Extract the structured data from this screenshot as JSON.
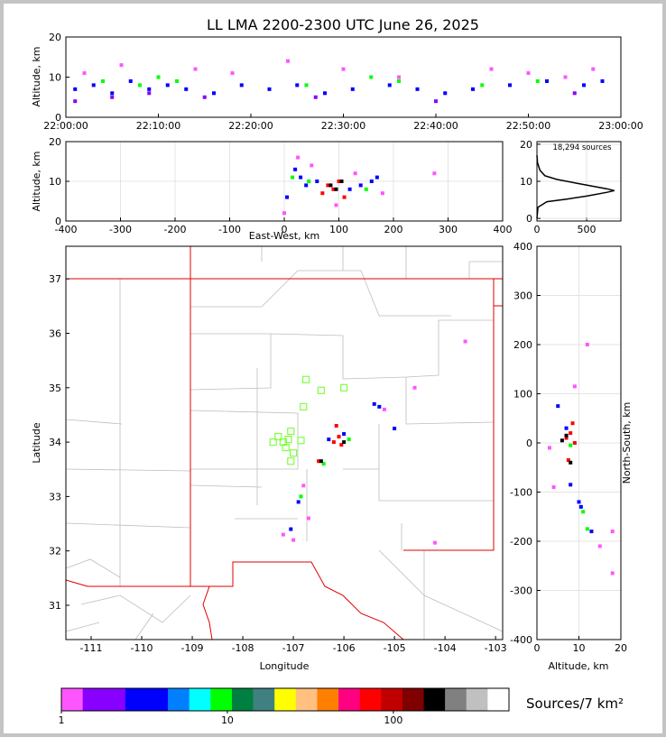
{
  "chart_data": [
    {
      "type": "scatter",
      "title": "LL LMA 2200-2300 UTC June 26, 2025",
      "ylabel": "Altitude, km",
      "xlim": [
        0,
        60
      ],
      "xticks": [
        {
          "value": 0,
          "label": "22:00:00"
        },
        {
          "value": 10,
          "label": "22:10:00"
        },
        {
          "value": 20,
          "label": "22:20:00"
        },
        {
          "value": 30,
          "label": "22:30:00"
        },
        {
          "value": 40,
          "label": "22:40:00"
        },
        {
          "value": 50,
          "label": "22:50:00"
        },
        {
          "value": 60,
          "label": "23:00:00"
        }
      ],
      "ylim": [
        0,
        20
      ],
      "yticks": [
        0,
        10,
        20
      ],
      "grid": false,
      "series": [
        {
          "color": "#0000ff",
          "x": [
            1,
            3,
            5,
            7,
            9,
            11,
            13,
            16,
            19,
            22,
            25,
            28,
            31,
            35,
            38,
            41,
            44,
            48,
            52,
            56,
            58
          ],
          "y": [
            7,
            8,
            6,
            9,
            7,
            8,
            7,
            6,
            8,
            7,
            8,
            6,
            7,
            8,
            7,
            6,
            7,
            8,
            9,
            8,
            9
          ]
        },
        {
          "color": "#ff55ff",
          "x": [
            2,
            6,
            10,
            14,
            18,
            24,
            30,
            36,
            46,
            50,
            54,
            57
          ],
          "y": [
            11,
            13,
            10,
            12,
            11,
            14,
            12,
            10,
            12,
            11,
            10,
            12
          ]
        },
        {
          "color": "#00ff00",
          "x": [
            4,
            8,
            10,
            12,
            26,
            33,
            36,
            45,
            51
          ],
          "y": [
            9,
            8,
            10,
            9,
            8,
            10,
            9,
            8,
            9
          ]
        },
        {
          "color": "#8800ff",
          "x": [
            1,
            5,
            9,
            15,
            27,
            40,
            55
          ],
          "y": [
            4,
            5,
            6,
            5,
            5,
            4,
            6
          ]
        }
      ]
    },
    {
      "type": "scatter",
      "ylabel": "Altitude, km",
      "xlabel": "East-West, km",
      "xlim": [
        -400,
        400
      ],
      "xticks": [
        -400,
        -300,
        -200,
        -100,
        0,
        100,
        200,
        300,
        400
      ],
      "ylim": [
        0,
        20
      ],
      "yticks": [
        0,
        10,
        20
      ],
      "grid": true,
      "series": [
        {
          "color": "#0000ff",
          "x": [
            5,
            20,
            30,
            40,
            60,
            120,
            140,
            160,
            170
          ],
          "y": [
            6,
            13,
            11,
            9,
            10,
            8,
            9,
            10,
            11
          ]
        },
        {
          "color": "#ff55ff",
          "x": [
            0,
            25,
            50,
            95,
            130,
            180,
            275
          ],
          "y": [
            2,
            16,
            14,
            4,
            12,
            7,
            12
          ]
        },
        {
          "color": "#ff0000",
          "x": [
            70,
            80,
            90,
            100,
            110
          ],
          "y": [
            7,
            9,
            8,
            10,
            6
          ]
        },
        {
          "color": "#000000",
          "x": [
            85,
            95,
            105
          ],
          "y": [
            9,
            8,
            10
          ]
        },
        {
          "color": "#00ff00",
          "x": [
            15,
            45,
            150
          ],
          "y": [
            11,
            10,
            8
          ]
        }
      ]
    },
    {
      "type": "line",
      "annotation": "18,294 sources",
      "xlim": [
        0,
        845
      ],
      "xticks": [
        0,
        500
      ],
      "ylim": [
        -0.7,
        20.7
      ],
      "yticks": [
        0,
        10,
        20
      ],
      "grid": true,
      "series": [
        {
          "color": "#000000",
          "x": [
            0,
            10,
            100,
            300,
            500,
            700,
            780,
            700,
            400,
            200,
            80,
            30,
            5,
            0
          ],
          "y": [
            0,
            3,
            4.5,
            5.2,
            6,
            7,
            7.5,
            8,
            9.5,
            10.5,
            11.5,
            13,
            15,
            17
          ]
        }
      ]
    },
    {
      "type": "scatter",
      "xlabel": "Longitude",
      "ylabel": "Latitude",
      "xlim": [
        -111.5,
        -102.86
      ],
      "xticks": [
        -111,
        -110,
        -109,
        -108,
        -107,
        -106,
        -105,
        -104,
        -103
      ],
      "ylim": [
        30.37,
        37.6
      ],
      "yticks": [
        31,
        32,
        33,
        34,
        35,
        36,
        37
      ],
      "grid": false,
      "series": [
        {
          "color": "#ff0000",
          "x": [
            -106.1,
            -106.2,
            -106.05,
            -106.15,
            -106.5
          ],
          "y": [
            34.1,
            34.0,
            33.95,
            34.3,
            33.65
          ]
        },
        {
          "color": "#0000ff",
          "x": [
            -105.3,
            -105.4,
            -106.9,
            -107.05,
            -106.0,
            -105.0,
            -106.3
          ],
          "y": [
            34.65,
            34.7,
            32.9,
            32.4,
            34.15,
            34.25,
            34.05
          ]
        },
        {
          "color": "#ff55ff",
          "x": [
            -106.8,
            -107.0,
            -104.6,
            -105.2,
            -107.2,
            -106.7,
            -103.6,
            -104.2
          ],
          "y": [
            33.2,
            32.2,
            35.0,
            34.6,
            32.3,
            32.6,
            35.85,
            32.15
          ]
        },
        {
          "color": "#00ff00",
          "x": [
            -106.85,
            -106.4,
            -105.9
          ],
          "y": [
            33.0,
            33.6,
            34.05
          ]
        },
        {
          "color": "#000000",
          "x": [
            -106.0,
            -106.45
          ],
          "y": [
            34.0,
            33.65
          ]
        },
        {
          "color": "#80ff40",
          "hollow": true,
          "x": [
            -106.75,
            -106.45,
            -106.0,
            -106.8,
            -107.05,
            -107.3,
            -107.1,
            -107.4,
            -107.2,
            -106.85,
            -107.0,
            -107.05,
            -107.15
          ],
          "y": [
            35.15,
            34.95,
            35.0,
            34.65,
            34.2,
            34.1,
            34.05,
            34.0,
            34.0,
            34.03,
            33.8,
            33.65,
            33.9
          ]
        }
      ]
    },
    {
      "type": "scatter",
      "xlabel": "Altitude, km",
      "ylabel": "North-South, km",
      "xlim": [
        0,
        20
      ],
      "xticks": [
        0,
        10,
        20
      ],
      "ylim": [
        -400,
        400
      ],
      "yticks": [
        -400,
        -300,
        -200,
        -100,
        0,
        100,
        200,
        300,
        400
      ],
      "grid": true,
      "series": [
        {
          "color": "#0000ff",
          "x": [
            5,
            7,
            10,
            10.5,
            13,
            8
          ],
          "y": [
            75,
            30,
            -120,
            -130,
            -180,
            -85
          ]
        },
        {
          "color": "#ff55ff",
          "x": [
            3,
            4,
            9,
            12,
            15,
            18,
            18
          ],
          "y": [
            -10,
            -90,
            115,
            200,
            -210,
            -265,
            -180
          ]
        },
        {
          "color": "#ff0000",
          "x": [
            7,
            8,
            9,
            7.5,
            8.5
          ],
          "y": [
            10,
            20,
            0,
            -35,
            40
          ]
        },
        {
          "color": "#000000",
          "x": [
            6,
            7,
            8
          ],
          "y": [
            5,
            15,
            -40
          ]
        },
        {
          "color": "#00ff00",
          "x": [
            8,
            11,
            12
          ],
          "y": [
            -5,
            -140,
            -175
          ]
        }
      ]
    },
    {
      "type": "colorbar",
      "label": "Sources/7 km²",
      "log": true,
      "xlim": [
        1,
        497
      ],
      "xticks": [
        1,
        10,
        100
      ],
      "colors": [
        "#ff55ff",
        "#8800ff",
        "#8800ff",
        "#0000ff",
        "#0000ff",
        "#0080ff",
        "#00ffff",
        "#00ff00",
        "#008040",
        "#408080",
        "#ffff00",
        "#ffc080",
        "#ff8000",
        "#ff0080",
        "#ff0000",
        "#c00000",
        "#800000",
        "#000000",
        "#808080",
        "#c0c0c0",
        "#ffffff"
      ]
    }
  ]
}
